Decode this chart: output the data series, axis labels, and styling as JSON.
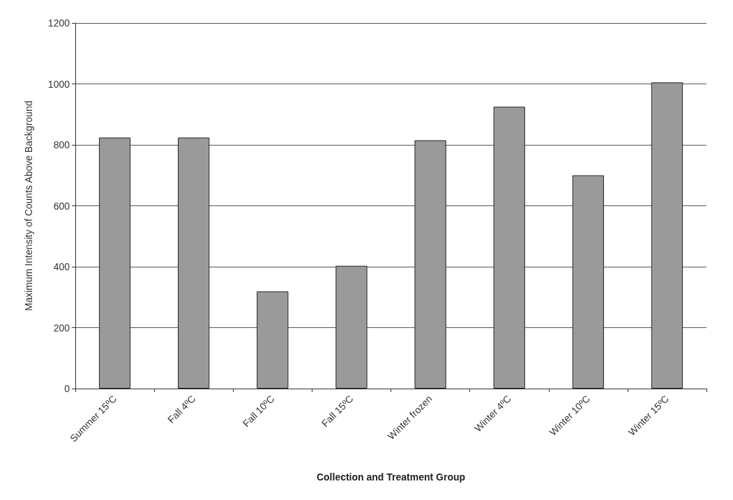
{
  "chart_data": {
    "type": "bar",
    "xlabel": "Collection and Treatment Group",
    "ylabel": "Maximum Intensity of Counts Above Background",
    "categories": [
      "Summer 15ºC",
      "Fall 4ºC",
      "Fall 10ºC",
      "Fall 15ºC",
      "Winter frozen",
      "Winter 4ºC",
      "Winter 10ºC",
      "Winter 15ºC"
    ],
    "values": [
      824,
      824,
      319,
      403,
      815,
      925,
      700,
      1005
    ],
    "color": "#9a9a9a",
    "ylim": [
      0,
      1200
    ],
    "yticks": [
      0,
      200,
      400,
      600,
      800,
      1000,
      1200
    ],
    "grid": "y"
  }
}
